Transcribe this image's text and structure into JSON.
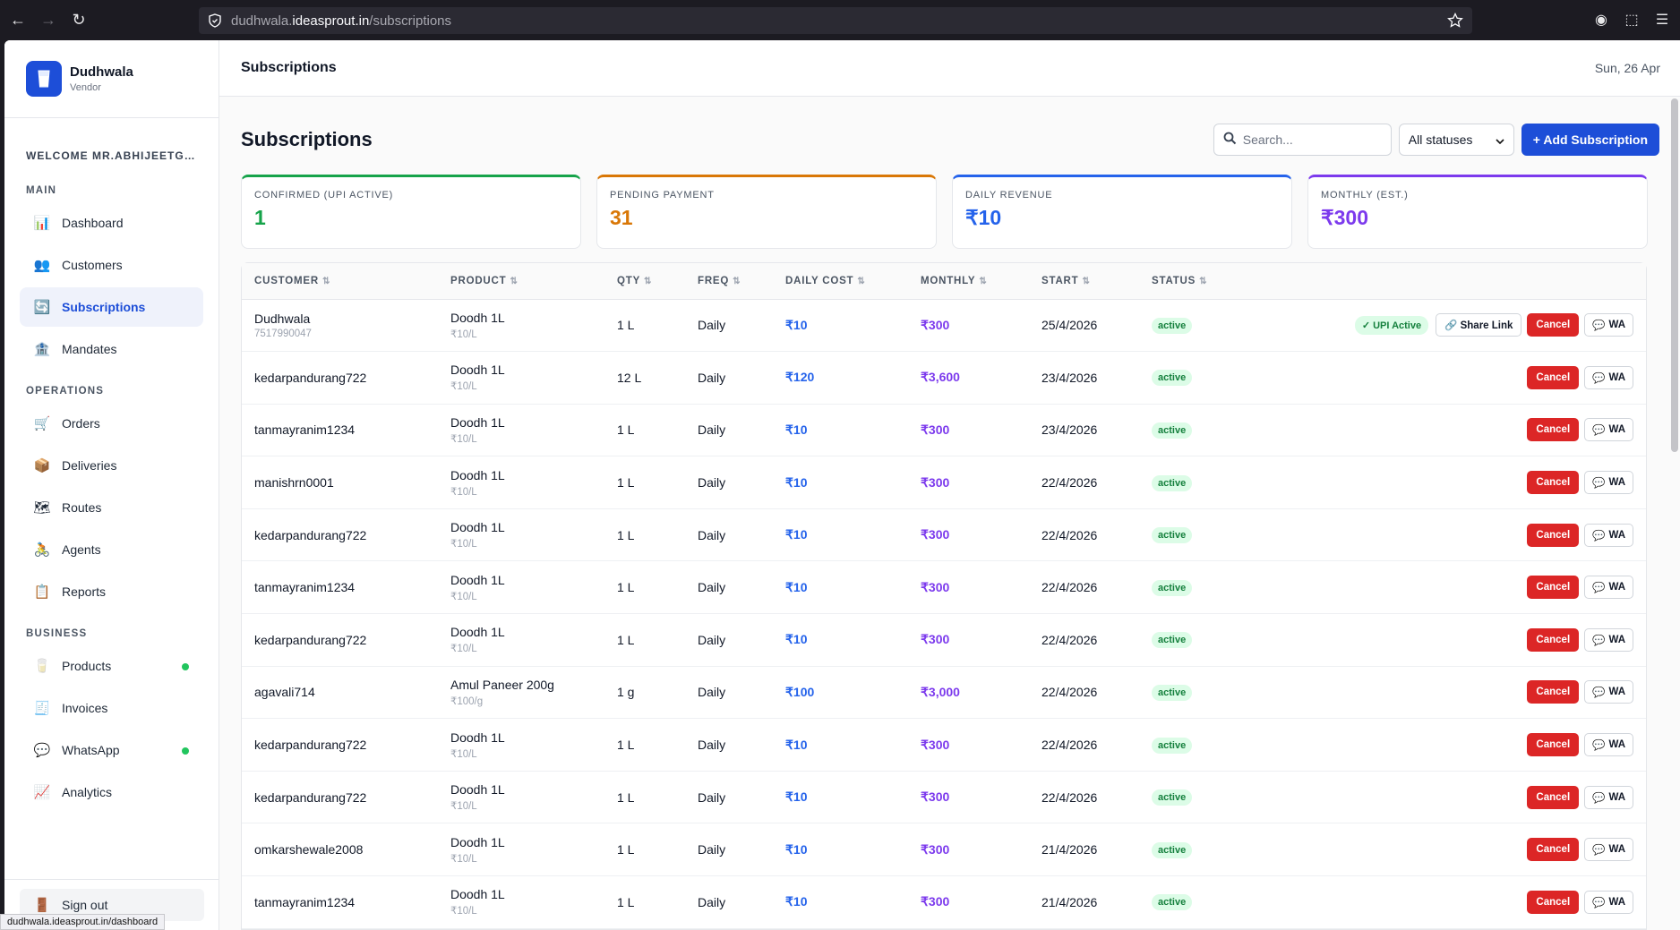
{
  "browser": {
    "url_host_prefix": "dudhwala.",
    "url_host_main": "ideasprout.in",
    "url_path": "/subscriptions",
    "status_url": "dudhwala.ideasprout.in/dashboard"
  },
  "brand": {
    "name": "Dudhwala",
    "role": "Vendor"
  },
  "sidebar": {
    "welcome": "WELCOME MR.ABHIJEETGAV...",
    "sections": [
      {
        "label": "MAIN",
        "items": [
          {
            "label": "Dashboard",
            "icon": "bar-chart-icon",
            "glyph": "📊"
          },
          {
            "label": "Customers",
            "icon": "users-icon",
            "glyph": "👥"
          },
          {
            "label": "Subscriptions",
            "icon": "refresh-icon",
            "glyph": "🔄",
            "active": true
          },
          {
            "label": "Mandates",
            "icon": "bank-icon",
            "glyph": "🏦"
          }
        ]
      },
      {
        "label": "OPERATIONS",
        "items": [
          {
            "label": "Orders",
            "icon": "cart-icon",
            "glyph": "🛒"
          },
          {
            "label": "Deliveries",
            "icon": "package-icon",
            "glyph": "📦"
          },
          {
            "label": "Routes",
            "icon": "map-icon",
            "glyph": "🗺"
          },
          {
            "label": "Agents",
            "icon": "bicycle-icon",
            "glyph": "🚴"
          },
          {
            "label": "Reports",
            "icon": "clipboard-icon",
            "glyph": "📋"
          }
        ]
      },
      {
        "label": "BUSINESS",
        "items": [
          {
            "label": "Products",
            "icon": "cup-icon",
            "glyph": "🥛",
            "dot": true
          },
          {
            "label": "Invoices",
            "icon": "receipt-icon",
            "glyph": "🧾"
          },
          {
            "label": "WhatsApp",
            "icon": "chat-icon",
            "glyph": "💬",
            "dot": true
          },
          {
            "label": "Analytics",
            "icon": "trend-icon",
            "glyph": "📈"
          }
        ]
      }
    ],
    "signout": "Sign out"
  },
  "topbar": {
    "title": "Subscriptions",
    "date": "Sun, 26 Apr"
  },
  "page": {
    "title": "Subscriptions",
    "search_placeholder": "Search...",
    "status_filter": "All statuses",
    "add_button": "+ Add Subscription"
  },
  "stats": [
    {
      "label": "CONFIRMED (UPI ACTIVE)",
      "value": "1",
      "color": "#16a34a"
    },
    {
      "label": "PENDING PAYMENT",
      "value": "31",
      "color": "#d97706"
    },
    {
      "label": "DAILY REVENUE",
      "value": "₹10",
      "color": "#2563eb"
    },
    {
      "label": "MONTHLY (EST.)",
      "value": "₹300",
      "color": "#7c3aed"
    }
  ],
  "table": {
    "columns": [
      "CUSTOMER",
      "PRODUCT",
      "QTY",
      "FREQ",
      "DAILY COST",
      "MONTHLY",
      "START",
      "STATUS"
    ],
    "action_labels": {
      "upi": "✓ UPI Active",
      "share": "Share Link",
      "cancel": "Cancel",
      "wa": "WA"
    },
    "rows": [
      {
        "customer": "Dudhwala",
        "phone": "7517990047",
        "product": "Doodh 1L",
        "price": "₹10/L",
        "qty": "1 L",
        "freq": "Daily",
        "daily": "₹10",
        "monthly": "₹300",
        "start": "25/4/2026",
        "status": "active",
        "upi": true
      },
      {
        "customer": "kedarpandurang722",
        "product": "Doodh 1L",
        "price": "₹10/L",
        "qty": "12 L",
        "freq": "Daily",
        "daily": "₹120",
        "monthly": "₹3,600",
        "start": "23/4/2026",
        "status": "active"
      },
      {
        "customer": "tanmayranim1234",
        "product": "Doodh 1L",
        "price": "₹10/L",
        "qty": "1 L",
        "freq": "Daily",
        "daily": "₹10",
        "monthly": "₹300",
        "start": "23/4/2026",
        "status": "active"
      },
      {
        "customer": "manishrn0001",
        "product": "Doodh 1L",
        "price": "₹10/L",
        "qty": "1 L",
        "freq": "Daily",
        "daily": "₹10",
        "monthly": "₹300",
        "start": "22/4/2026",
        "status": "active"
      },
      {
        "customer": "kedarpandurang722",
        "product": "Doodh 1L",
        "price": "₹10/L",
        "qty": "1 L",
        "freq": "Daily",
        "daily": "₹10",
        "monthly": "₹300",
        "start": "22/4/2026",
        "status": "active"
      },
      {
        "customer": "tanmayranim1234",
        "product": "Doodh 1L",
        "price": "₹10/L",
        "qty": "1 L",
        "freq": "Daily",
        "daily": "₹10",
        "monthly": "₹300",
        "start": "22/4/2026",
        "status": "active"
      },
      {
        "customer": "kedarpandurang722",
        "product": "Doodh 1L",
        "price": "₹10/L",
        "qty": "1 L",
        "freq": "Daily",
        "daily": "₹10",
        "monthly": "₹300",
        "start": "22/4/2026",
        "status": "active"
      },
      {
        "customer": "agavali714",
        "product": "Amul Paneer 200g",
        "price": "₹100/g",
        "qty": "1 g",
        "freq": "Daily",
        "daily": "₹100",
        "monthly": "₹3,000",
        "start": "22/4/2026",
        "status": "active"
      },
      {
        "customer": "kedarpandurang722",
        "product": "Doodh 1L",
        "price": "₹10/L",
        "qty": "1 L",
        "freq": "Daily",
        "daily": "₹10",
        "monthly": "₹300",
        "start": "22/4/2026",
        "status": "active"
      },
      {
        "customer": "kedarpandurang722",
        "product": "Doodh 1L",
        "price": "₹10/L",
        "qty": "1 L",
        "freq": "Daily",
        "daily": "₹10",
        "monthly": "₹300",
        "start": "22/4/2026",
        "status": "active"
      },
      {
        "customer": "omkarshewale2008",
        "product": "Doodh 1L",
        "price": "₹10/L",
        "qty": "1 L",
        "freq": "Daily",
        "daily": "₹10",
        "monthly": "₹300",
        "start": "21/4/2026",
        "status": "active"
      },
      {
        "customer": "tanmayranim1234",
        "product": "Doodh 1L",
        "price": "₹10/L",
        "qty": "1 L",
        "freq": "Daily",
        "daily": "₹10",
        "monthly": "₹300",
        "start": "21/4/2026",
        "status": "active"
      }
    ]
  }
}
